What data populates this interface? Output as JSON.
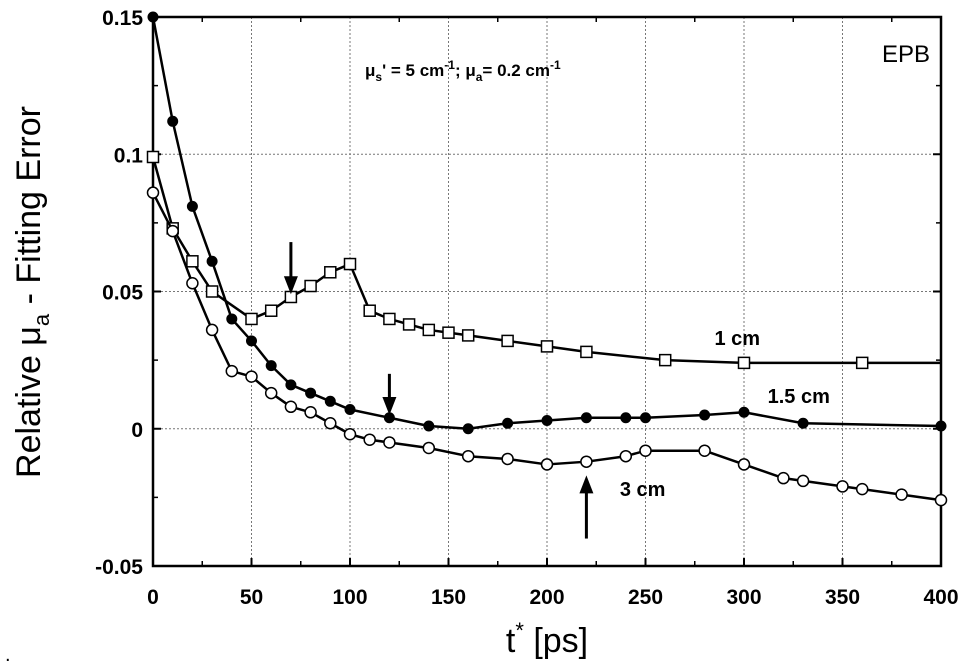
{
  "chart_data": {
    "type": "line",
    "corner_label": "EPB",
    "param_text": {
      "mu1": "μ",
      "sub1": "s",
      "mid1": "' = 5 cm",
      "sup1": "-1",
      "sep": "; ",
      "mu2": "μ",
      "sub2": "a",
      "mid2": "= 0.2 cm",
      "sup2": "-1"
    },
    "ylabel": {
      "pre": "Relative μ",
      "sub": "a",
      "post": " - Fitting Error"
    },
    "xlabel": {
      "pre": "t",
      "sup": "*",
      "post": " [ps]"
    },
    "xlim": [
      0,
      400
    ],
    "ylim": [
      -0.05,
      0.15
    ],
    "x_ticks": [
      0,
      50,
      100,
      150,
      200,
      250,
      300,
      350,
      400
    ],
    "x_tick_labels": [
      "0",
      "50",
      "100",
      "150",
      "200",
      "250",
      "300",
      "350",
      "400"
    ],
    "y_ticks": [
      -0.05,
      0,
      0.05,
      0.1,
      0.15
    ],
    "y_tick_labels": [
      "-0.05",
      "0",
      "0.05",
      "0.1",
      "0.15"
    ],
    "grid": true,
    "series": [
      {
        "name": "1 cm",
        "marker": "open-square",
        "points": [
          [
            0,
            0.099
          ],
          [
            10,
            0.073
          ],
          [
            20,
            0.061
          ],
          [
            30,
            0.05
          ],
          [
            50,
            0.04
          ],
          [
            60,
            0.043
          ],
          [
            70,
            0.048
          ],
          [
            80,
            0.052
          ],
          [
            90,
            0.057
          ],
          [
            100,
            0.06
          ],
          [
            110,
            0.043
          ],
          [
            120,
            0.04
          ],
          [
            130,
            0.038
          ],
          [
            140,
            0.036
          ],
          [
            150,
            0.035
          ],
          [
            160,
            0.034
          ],
          [
            180,
            0.032
          ],
          [
            200,
            0.03
          ],
          [
            220,
            0.028
          ],
          [
            260,
            0.025
          ],
          [
            300,
            0.024
          ],
          [
            360,
            0.024
          ],
          [
            400,
            0.024
          ]
        ],
        "show_last_marker": false
      },
      {
        "name": "1.5 cm",
        "marker": "filled-circle",
        "points": [
          [
            0,
            0.15
          ],
          [
            10,
            0.112
          ],
          [
            20,
            0.081
          ],
          [
            30,
            0.061
          ],
          [
            40,
            0.04
          ],
          [
            50,
            0.032
          ],
          [
            60,
            0.023
          ],
          [
            70,
            0.016
          ],
          [
            80,
            0.013
          ],
          [
            90,
            0.01
          ],
          [
            100,
            0.007
          ],
          [
            120,
            0.004
          ],
          [
            140,
            0.001
          ],
          [
            160,
            0.0
          ],
          [
            180,
            0.002
          ],
          [
            200,
            0.003
          ],
          [
            220,
            0.004
          ],
          [
            240,
            0.004
          ],
          [
            250,
            0.004
          ],
          [
            280,
            0.005
          ],
          [
            300,
            0.006
          ],
          [
            330,
            0.002
          ],
          [
            400,
            0.001
          ]
        ],
        "show_last_marker": true
      },
      {
        "name": "3 cm",
        "marker": "open-circle",
        "points": [
          [
            0,
            0.086
          ],
          [
            10,
            0.072
          ],
          [
            20,
            0.053
          ],
          [
            30,
            0.036
          ],
          [
            40,
            0.021
          ],
          [
            50,
            0.019
          ],
          [
            60,
            0.013
          ],
          [
            70,
            0.008
          ],
          [
            80,
            0.006
          ],
          [
            90,
            0.002
          ],
          [
            100,
            -0.002
          ],
          [
            110,
            -0.004
          ],
          [
            120,
            -0.005
          ],
          [
            140,
            -0.007
          ],
          [
            160,
            -0.01
          ],
          [
            180,
            -0.011
          ],
          [
            200,
            -0.013
          ],
          [
            220,
            -0.012
          ],
          [
            240,
            -0.01
          ],
          [
            250,
            -0.008
          ],
          [
            280,
            -0.008
          ],
          [
            300,
            -0.013
          ],
          [
            320,
            -0.018
          ],
          [
            330,
            -0.019
          ],
          [
            350,
            -0.021
          ],
          [
            360,
            -0.022
          ],
          [
            380,
            -0.024
          ],
          [
            400,
            -0.026
          ]
        ],
        "show_last_marker": true
      }
    ],
    "series_labels": [
      {
        "text": "1 cm",
        "x": 285,
        "y": 0.033
      },
      {
        "text": "1.5 cm",
        "x": 312,
        "y": 0.012
      },
      {
        "text": "3 cm",
        "x": 237,
        "y": -0.022
      }
    ],
    "arrows": [
      {
        "x": 70,
        "y_from": 0.068,
        "y_to": 0.049,
        "direction": "down"
      },
      {
        "x": 120,
        "y_from": 0.02,
        "y_to": 0.005,
        "direction": "down"
      },
      {
        "x": 220,
        "y_from": -0.04,
        "y_to": -0.017,
        "direction": "up"
      }
    ]
  },
  "bottom_mark": "."
}
